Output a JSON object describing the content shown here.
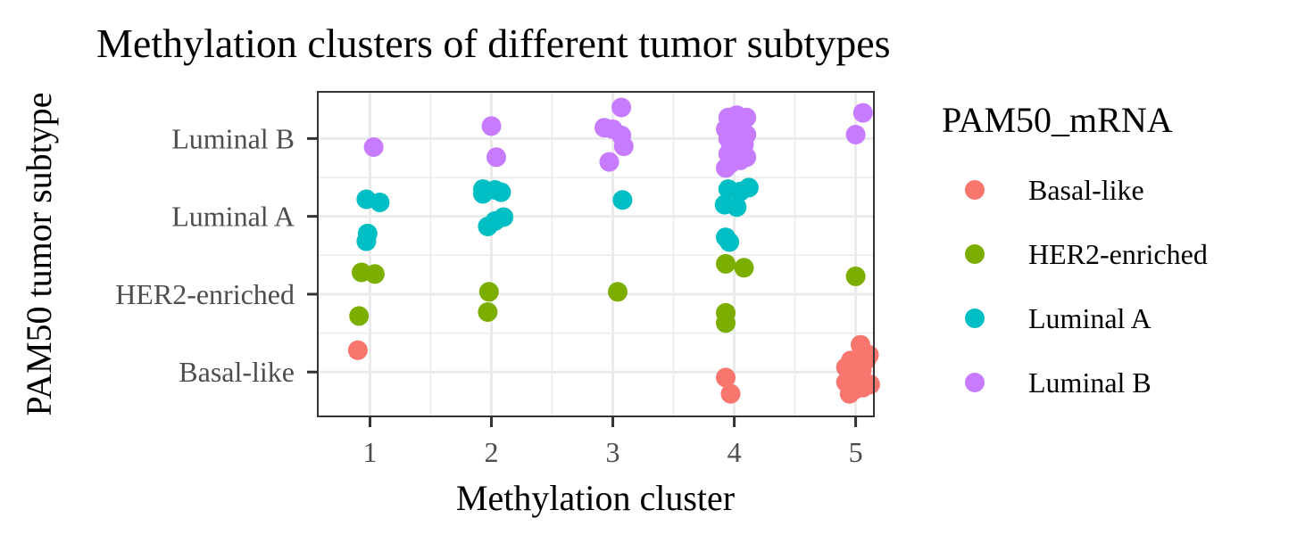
{
  "chart_data": {
    "type": "scatter",
    "title": "Methylation clusters of different tumor subtypes",
    "xlabel": "Methylation cluster",
    "ylabel": "PAM50 tumor subtype",
    "x_ticks": [
      "1",
      "2",
      "3",
      "4",
      "5"
    ],
    "y_categories": [
      "Basal-like",
      "HER2-enriched",
      "Luminal A",
      "Luminal B"
    ],
    "xlim": [
      0.57,
      5.15
    ],
    "ylim": [
      0.43,
      4.6
    ],
    "grid": true,
    "legend": {
      "title": "PAM50_mRNA",
      "position": "right"
    },
    "series": [
      {
        "name": "Basal-like",
        "color": "#F8766D",
        "points": [
          [
            0.9,
            1.28
          ],
          [
            3.93,
            0.93
          ],
          [
            3.97,
            0.72
          ],
          [
            5.04,
            1.35
          ],
          [
            5.11,
            1.22
          ],
          [
            4.96,
            1.15
          ],
          [
            5.02,
            1.12
          ],
          [
            5.09,
            1.16
          ],
          [
            4.92,
            1.06
          ],
          [
            5.05,
            1.02
          ],
          [
            4.95,
            0.95
          ],
          [
            4.99,
            0.9
          ],
          [
            5.03,
            0.84
          ],
          [
            5.12,
            0.84
          ],
          [
            4.92,
            0.87
          ],
          [
            4.95,
            0.72
          ],
          [
            5.0,
            0.78
          ],
          [
            5.06,
            0.8
          ]
        ]
      },
      {
        "name": "HER2-enriched",
        "color": "#7CAE00",
        "points": [
          [
            0.93,
            2.28
          ],
          [
            1.04,
            2.26
          ],
          [
            0.91,
            1.72
          ],
          [
            1.98,
            2.03
          ],
          [
            1.97,
            1.77
          ],
          [
            3.04,
            2.03
          ],
          [
            3.93,
            2.39
          ],
          [
            4.08,
            2.34
          ],
          [
            3.93,
            1.76
          ],
          [
            3.93,
            1.63
          ],
          [
            5.0,
            2.23
          ]
        ]
      },
      {
        "name": "Luminal A",
        "color": "#00BFC4",
        "points": [
          [
            0.97,
            3.22
          ],
          [
            1.08,
            3.18
          ],
          [
            0.98,
            2.78
          ],
          [
            0.97,
            2.68
          ],
          [
            1.93,
            3.35
          ],
          [
            1.93,
            3.29
          ],
          [
            2.03,
            3.34
          ],
          [
            2.08,
            3.31
          ],
          [
            2.03,
            2.94
          ],
          [
            2.1,
            2.99
          ],
          [
            1.97,
            2.87
          ],
          [
            3.08,
            3.21
          ],
          [
            3.95,
            3.35
          ],
          [
            4.05,
            3.32
          ],
          [
            4.12,
            3.37
          ],
          [
            3.92,
            3.15
          ],
          [
            4.02,
            3.12
          ],
          [
            3.93,
            2.73
          ],
          [
            3.96,
            2.67
          ]
        ]
      },
      {
        "name": "Luminal B",
        "color": "#C77CFF",
        "points": [
          [
            1.03,
            3.89
          ],
          [
            2.0,
            4.16
          ],
          [
            2.04,
            3.76
          ],
          [
            3.07,
            4.4
          ],
          [
            2.93,
            4.14
          ],
          [
            3.0,
            4.12
          ],
          [
            3.07,
            4.04
          ],
          [
            3.09,
            3.9
          ],
          [
            2.97,
            3.7
          ],
          [
            3.95,
            4.27
          ],
          [
            4.02,
            4.3
          ],
          [
            4.1,
            4.27
          ],
          [
            3.98,
            4.22
          ],
          [
            4.04,
            4.17
          ],
          [
            3.93,
            4.12
          ],
          [
            4.1,
            4.05
          ],
          [
            3.95,
            4.0
          ],
          [
            4.04,
            3.97
          ],
          [
            4.08,
            3.92
          ],
          [
            3.97,
            3.87
          ],
          [
            4.02,
            3.84
          ],
          [
            3.95,
            3.8
          ],
          [
            4.1,
            3.76
          ],
          [
            4.05,
            3.72
          ],
          [
            3.97,
            3.68
          ],
          [
            3.93,
            3.62
          ],
          [
            5.06,
            4.33
          ],
          [
            5.0,
            4.05
          ]
        ]
      }
    ]
  }
}
